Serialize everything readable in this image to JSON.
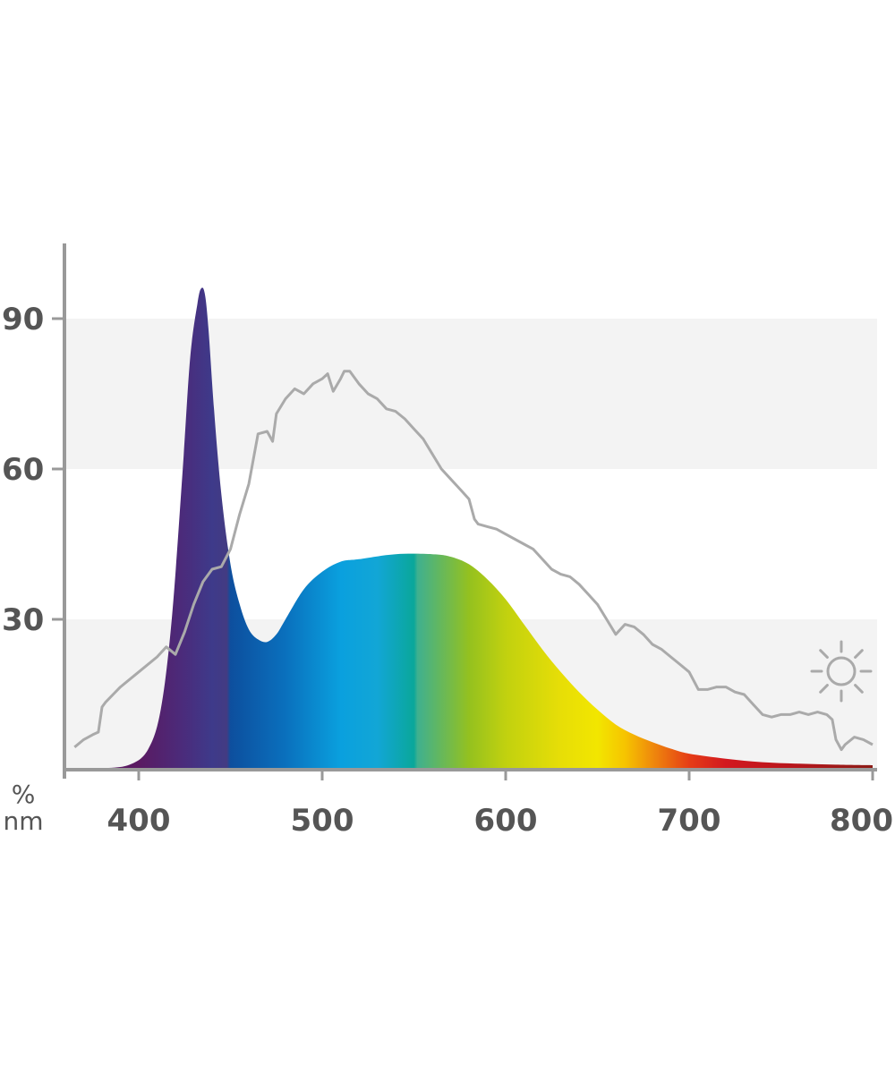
{
  "chart_data": {
    "type": "area",
    "title": "",
    "xlabel": "nm",
    "ylabel": "%",
    "xlim": [
      360,
      800
    ],
    "ylim": [
      0,
      105
    ],
    "x_ticks": [
      400,
      500,
      600,
      700,
      800
    ],
    "y_ticks": [
      30,
      60,
      90
    ],
    "x_tick_labels": [
      "400",
      "500",
      "600",
      "700",
      "800"
    ],
    "y_tick_labels": [
      "30",
      "60",
      "90"
    ],
    "background_bands": [
      [
        0,
        30
      ],
      [
        60,
        90
      ]
    ],
    "legend_icon": "sun-icon",
    "colors": {
      "axis": "#999999",
      "band": "#f3f3f3",
      "sunlight_line": "#aaaaaa",
      "text": "#555555"
    },
    "spectrum_gradient": [
      {
        "nm": 400,
        "color": "#5a1a62"
      },
      {
        "nm": 425,
        "color": "#4a2c7c"
      },
      {
        "nm": 440,
        "color": "#3e3a8a"
      },
      {
        "nm": 448,
        "color": "#433b82"
      },
      {
        "nm": 450,
        "color": "#0d4f9e"
      },
      {
        "nm": 480,
        "color": "#0a70bd"
      },
      {
        "nm": 510,
        "color": "#0aa0de"
      },
      {
        "nm": 530,
        "color": "#12a6d6"
      },
      {
        "nm": 550,
        "color": "#0aa79a"
      },
      {
        "nm": 552,
        "color": "#3fb08f"
      },
      {
        "nm": 580,
        "color": "#94c11f"
      },
      {
        "nm": 600,
        "color": "#c1d10f"
      },
      {
        "nm": 630,
        "color": "#e7de07"
      },
      {
        "nm": 650,
        "color": "#f2e600"
      },
      {
        "nm": 665,
        "color": "#f6c400"
      },
      {
        "nm": 680,
        "color": "#ef8a0c"
      },
      {
        "nm": 700,
        "color": "#e53d16"
      },
      {
        "nm": 720,
        "color": "#d2181f"
      },
      {
        "nm": 760,
        "color": "#b5161b"
      },
      {
        "nm": 800,
        "color": "#8c1b16"
      }
    ],
    "series": [
      {
        "x": [
          360,
          380,
          395,
          405,
          412,
          418,
          424,
          428,
          432,
          434,
          436,
          438,
          441,
          445,
          450,
          455,
          460,
          465,
          470,
          475,
          480,
          490,
          500,
          510,
          520,
          540,
          560,
          570,
          580,
          590,
          600,
          610,
          620,
          630,
          640,
          650,
          660,
          670,
          680,
          690,
          700,
          720,
          740,
          760,
          780,
          800
        ],
        "values": [
          0.3,
          0.3,
          1,
          4,
          12,
          30,
          60,
          82,
          93,
          96,
          95,
          88,
          72,
          55,
          41,
          33,
          28,
          26,
          25.5,
          27,
          30,
          36,
          39.5,
          41.5,
          42,
          43,
          43,
          42.5,
          41,
          38,
          34,
          29,
          24,
          19.5,
          15.5,
          12,
          9,
          7,
          5.5,
          4.2,
          3.2,
          2.2,
          1.5,
          1.2,
          1,
          0.9
        ]
      },
      {
        "x": [
          365,
          370,
          375,
          378,
          380,
          382,
          390,
          400,
          410,
          415,
          420,
          425,
          430,
          435,
          440,
          445,
          450,
          455,
          460,
          465,
          470,
          473,
          475,
          480,
          485,
          490,
          495,
          500,
          503,
          506,
          510,
          512,
          515,
          520,
          525,
          530,
          535,
          540,
          545,
          550,
          555,
          560,
          565,
          570,
          575,
          580,
          583,
          585,
          590,
          595,
          600,
          610,
          615,
          620,
          625,
          630,
          635,
          640,
          645,
          650,
          655,
          660,
          665,
          670,
          675,
          680,
          685,
          690,
          695,
          700,
          705,
          710,
          715,
          720,
          725,
          730,
          735,
          740,
          745,
          750,
          755,
          760,
          765,
          770,
          775,
          778,
          780,
          783,
          785,
          790,
          795,
          800
        ],
        "values": [
          4.5,
          6,
          7,
          7.5,
          12.5,
          13.5,
          16.5,
          19.5,
          22.5,
          24.5,
          23,
          27.5,
          33,
          37.5,
          40,
          40.5,
          44,
          51,
          57,
          67,
          67.5,
          65.5,
          71,
          74,
          76,
          75,
          77,
          78,
          79,
          75.5,
          78,
          79.5,
          79.5,
          77,
          75,
          74,
          72,
          71.5,
          70,
          68,
          66,
          63,
          60,
          58,
          56,
          54,
          50,
          49,
          48.5,
          48,
          47,
          45,
          44,
          42,
          40,
          39,
          38.5,
          37,
          35,
          33,
          30,
          27,
          29,
          28.5,
          27,
          25,
          24,
          22.5,
          21,
          19.5,
          16,
          16,
          16.5,
          16.5,
          15.5,
          15,
          13,
          11,
          10.5,
          11,
          11,
          11.5,
          11,
          11.5,
          11,
          10,
          6,
          4,
          5,
          6.5,
          6,
          5
        ]
      }
    ]
  }
}
